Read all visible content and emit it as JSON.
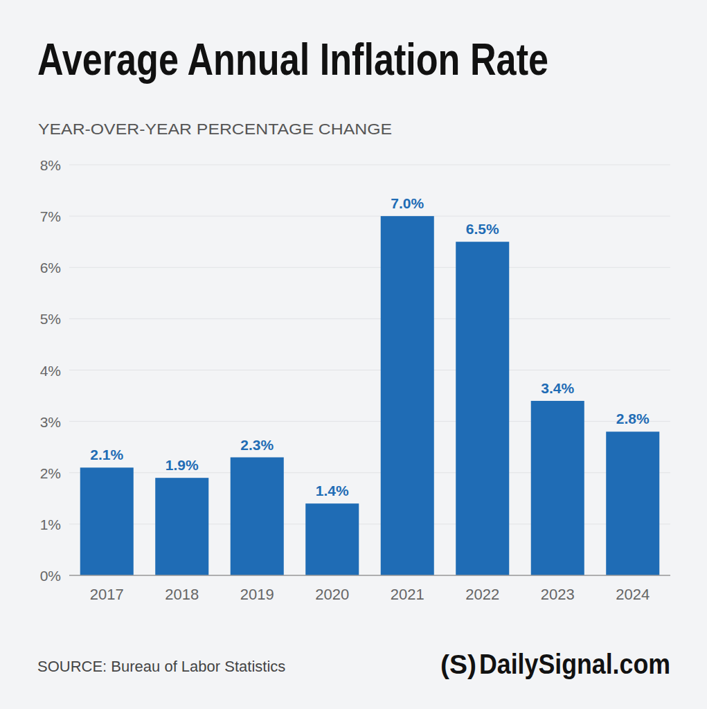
{
  "chart_data": {
    "type": "bar",
    "title": "Average Annual Inflation Rate",
    "subtitle": "YEAR-OVER-YEAR PERCENTAGE CHANGE",
    "source": "SOURCE: Bureau of Labor Statistics",
    "logo_mark": "(S)",
    "logo": "DailySignal.com",
    "categories": [
      "2017",
      "2018",
      "2019",
      "2020",
      "2021",
      "2022",
      "2023",
      "2024"
    ],
    "values": [
      2.1,
      1.9,
      2.3,
      1.4,
      7.0,
      6.5,
      3.4,
      2.8
    ],
    "value_labels": [
      "2.1%",
      "1.9%",
      "2.3%",
      "1.4%",
      "7.0%",
      "6.5%",
      "3.4%",
      "2.8%"
    ],
    "color": "#1f6cb5",
    "ylim": [
      0,
      8
    ],
    "yticks": [
      {
        "value": 0,
        "label": "0%"
      },
      {
        "value": 1,
        "label": "1%"
      },
      {
        "value": 2,
        "label": "2%"
      },
      {
        "value": 3,
        "label": "3%"
      },
      {
        "value": 4,
        "label": "4%"
      },
      {
        "value": 5,
        "label": "5%"
      },
      {
        "value": 6,
        "label": "6%"
      },
      {
        "value": 7,
        "label": "7%"
      },
      {
        "value": 8,
        "label": "8%"
      }
    ],
    "grid": true,
    "data_labels": true
  }
}
